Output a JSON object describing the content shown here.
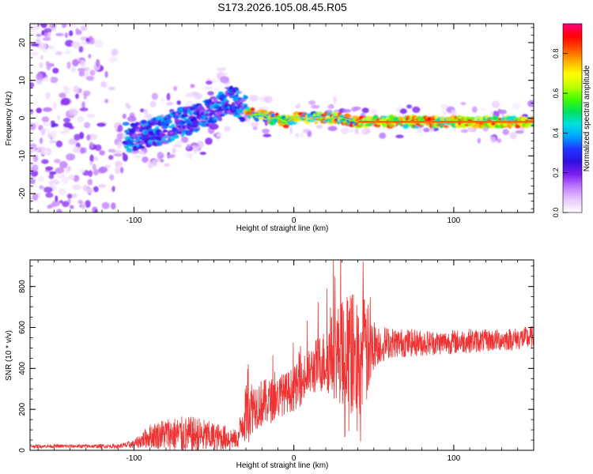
{
  "title": "S173.2026.105.08.45.R05",
  "chart_data": [
    {
      "type": "heatmap",
      "xlabel": "Height of straight line (km)",
      "ylabel": "Frequency (Hz)",
      "xlim": [
        -165,
        150
      ],
      "ylim": [
        -25,
        25
      ],
      "xticks": [
        -100,
        0,
        100
      ],
      "yticks": [
        -20,
        -10,
        0,
        10,
        20
      ],
      "colorbar": {
        "label": "Normalized spectral amplitude",
        "range": [
          0,
          1
        ],
        "ticks": [
          0,
          0.2,
          0.4,
          0.6,
          0.8
        ],
        "tick_labels": [
          "0.0",
          "0.2",
          "0.4",
          "0.6",
          "0.8"
        ],
        "colormap": [
          "#ffffff",
          "#e8c8ff",
          "#c080ff",
          "#8020f0",
          "#3010e0",
          "#2030ff",
          "#00a0ff",
          "#00e0e0",
          "#00e060",
          "#40ff00",
          "#c0ff00",
          "#ffff00",
          "#ffb000",
          "#ff5000",
          "#ff0000",
          "#ff0080"
        ]
      },
      "ridge": {
        "x": [
          -100,
          -90,
          -80,
          -70,
          -60,
          -50,
          -40,
          -35,
          -30,
          -25,
          -20,
          -15,
          -10,
          -5,
          0,
          10,
          20,
          30,
          40,
          60,
          80,
          100,
          120,
          150
        ],
        "y": [
          -5,
          -4,
          -3,
          -1,
          0,
          2,
          5,
          4,
          2,
          1,
          1,
          0,
          0,
          -1,
          0,
          0,
          0,
          0,
          -1,
          -1,
          -1,
          -1,
          -1,
          -1
        ]
      }
    },
    {
      "type": "line",
      "xlabel": "Height of straight line (km)",
      "ylabel": "SNR (10 * v/v)",
      "xlim": [
        -165,
        150
      ],
      "ylim": [
        0,
        930
      ],
      "xticks": [
        -100,
        0,
        100
      ],
      "yticks": [
        0,
        200,
        400,
        600,
        800
      ],
      "color": "#ee3333",
      "envelope": {
        "x": [
          -165,
          -110,
          -100,
          -90,
          -80,
          -70,
          -60,
          -50,
          -40,
          -35,
          -32,
          -28,
          -25,
          -20,
          -15,
          -10,
          -5,
          0,
          5,
          10,
          15,
          20,
          25,
          30,
          35,
          40,
          45,
          50,
          55,
          60,
          70,
          80,
          90,
          100,
          110,
          120,
          130,
          140,
          150
        ],
        "base": [
          20,
          20,
          30,
          70,
          80,
          75,
          70,
          65,
          60,
          50,
          150,
          200,
          220,
          230,
          240,
          260,
          280,
          300,
          330,
          380,
          420,
          440,
          470,
          480,
          480,
          450,
          470,
          520,
          520,
          525,
          525,
          525,
          525,
          530,
          535,
          535,
          540,
          545,
          550
        ],
        "amp": [
          8,
          10,
          20,
          60,
          80,
          90,
          95,
          70,
          60,
          40,
          120,
          160,
          120,
          120,
          110,
          110,
          100,
          110,
          110,
          120,
          140,
          160,
          220,
          260,
          300,
          320,
          280,
          120,
          90,
          75,
          70,
          65,
          60,
          60,
          60,
          55,
          55,
          55,
          60
        ]
      }
    }
  ]
}
